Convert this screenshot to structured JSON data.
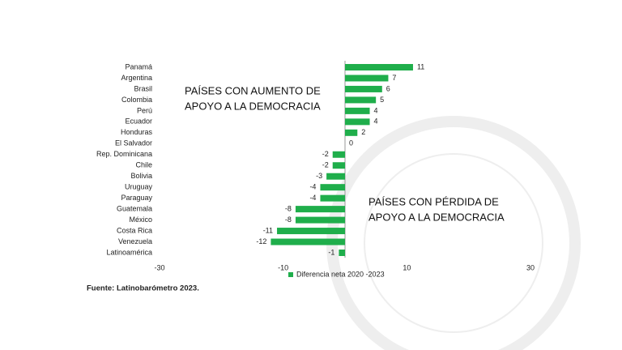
{
  "chart_data": {
    "type": "bar",
    "orientation": "horizontal",
    "categories": [
      "Panamá",
      "Argentina",
      "Brasil",
      "Colombia",
      "Perú",
      "Ecuador",
      "Honduras",
      "El Salvador",
      "Rep. Dominicana",
      "Chile",
      "Bolivia",
      "Uruguay",
      "Paraguay",
      "Guatemala",
      "México",
      "Costa Rica",
      "Venezuela",
      "Latinoamérica"
    ],
    "series": [
      {
        "name": "Diferencia neta 2020 -2023",
        "color": "#1fae4b",
        "values": [
          11,
          7,
          6,
          5,
          4,
          4,
          2,
          0,
          -2,
          -2,
          -3,
          -4,
          -4,
          -8,
          -8,
          -11,
          -12,
          -1
        ]
      }
    ],
    "xlim": [
      -30,
      30
    ],
    "xticks": [
      -30,
      -10,
      10,
      30
    ],
    "annotations": [
      {
        "lines": [
          "PAÍSES CON AUMENTO DE",
          "APOYO A LA DEMOCRACIA"
        ]
      },
      {
        "lines": [
          "PAÍSES CON PÉRDIDA DE",
          "APOYO A LA DEMOCRACIA"
        ]
      }
    ],
    "source": "Fuente: Latinobarómetro 2023.",
    "legend": "bottom"
  }
}
